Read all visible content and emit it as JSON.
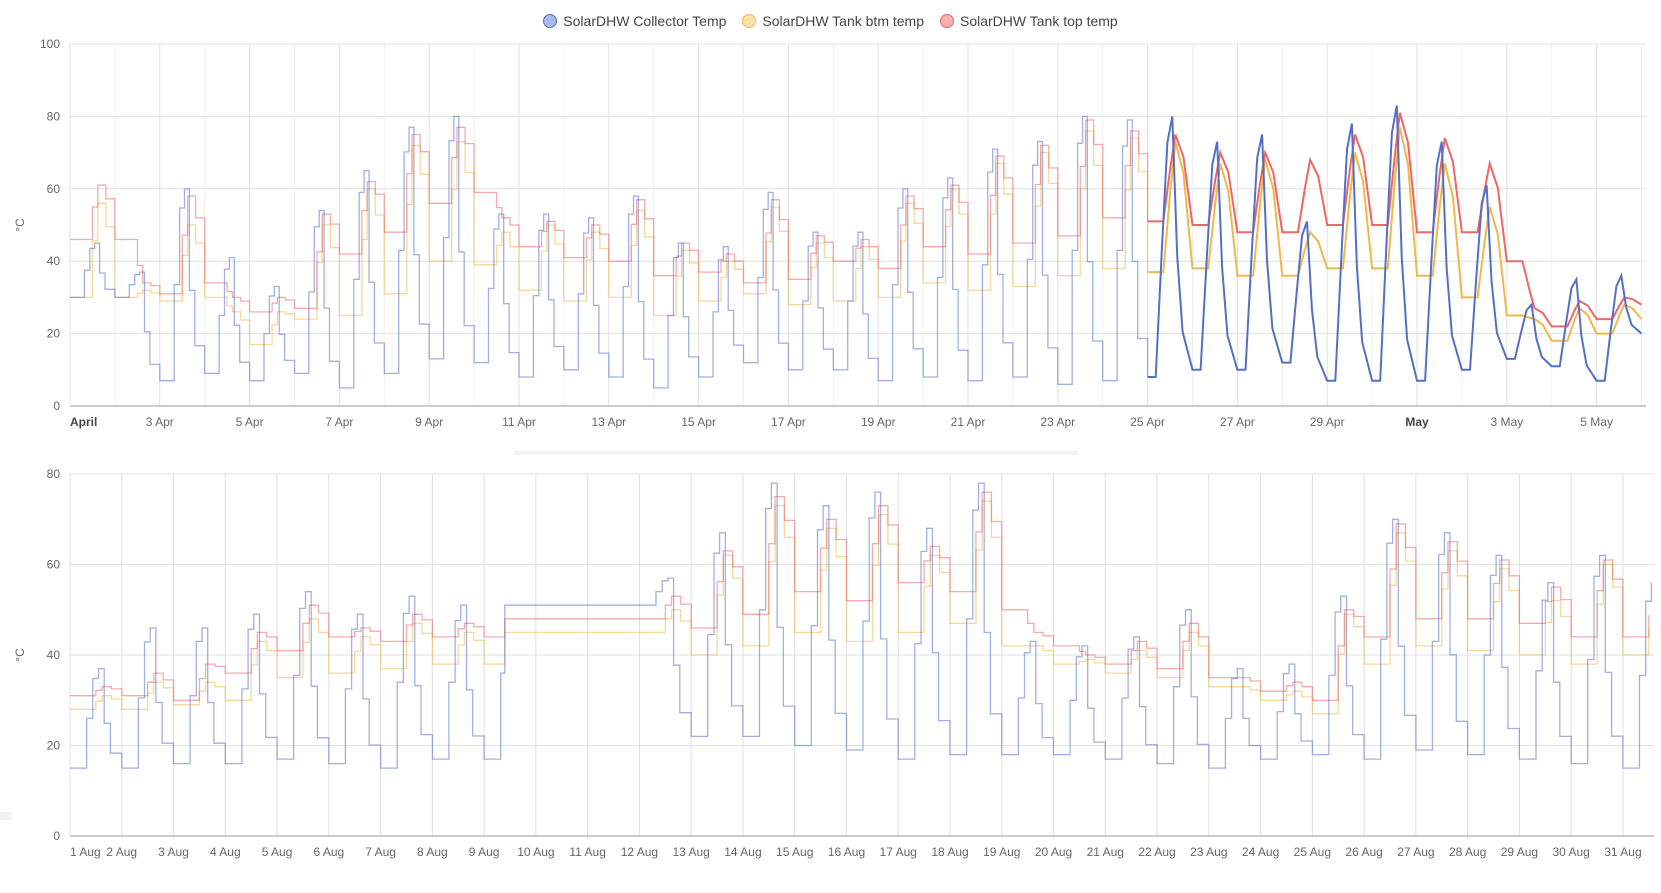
{
  "legend": {
    "items": [
      {
        "label": "SolarDHW Collector Temp",
        "color": "#5470c6",
        "fill": "#aab8e6"
      },
      {
        "label": "SolarDHW Tank btm temp",
        "color": "#f0b84a",
        "fill": "#fbe2ab"
      },
      {
        "label": "SolarDHW Tank top temp",
        "color": "#ee6666",
        "fill": "#f6b0b0"
      }
    ]
  },
  "colors": {
    "collector": "#5470c6",
    "tank_bottom": "#f0b84a",
    "tank_top": "#ee6666",
    "grid": "#e0e0e0",
    "axis_text": "#666666"
  },
  "chart_data": [
    {
      "type": "line",
      "ylabel": "°C",
      "ylim": [
        0,
        100
      ],
      "yticks": [
        0,
        20,
        40,
        60,
        80,
        100
      ],
      "x_unit": "days since 1 April",
      "xlim": [
        0,
        35.1
      ],
      "xticks": [
        {
          "x": 0,
          "label": "April",
          "bold": true
        },
        {
          "x": 2,
          "label": "3 Apr"
        },
        {
          "x": 4,
          "label": "5 Apr"
        },
        {
          "x": 6,
          "label": "7 Apr"
        },
        {
          "x": 8,
          "label": "9 Apr"
        },
        {
          "x": 10,
          "label": "11 Apr"
        },
        {
          "x": 12,
          "label": "13 Apr"
        },
        {
          "x": 14,
          "label": "15 Apr"
        },
        {
          "x": 16,
          "label": "17 Apr"
        },
        {
          "x": 18,
          "label": "19 Apr"
        },
        {
          "x": 20,
          "label": "21 Apr"
        },
        {
          "x": 22,
          "label": "23 Apr"
        },
        {
          "x": 24,
          "label": "25 Apr"
        },
        {
          "x": 26,
          "label": "27 Apr"
        },
        {
          "x": 28,
          "label": "29 Apr"
        },
        {
          "x": 30,
          "label": "May",
          "bold": true
        },
        {
          "x": 32,
          "label": "3 May"
        },
        {
          "x": 34,
          "label": "5 May"
        }
      ],
      "bold_data_from": 24.0,
      "series": [
        {
          "name": "SolarDHW Collector Temp",
          "key": "collector",
          "peaks": [
            45,
            37,
            60,
            41,
            33,
            54,
            65,
            77,
            80,
            53,
            53,
            52,
            58,
            45,
            44,
            59,
            48,
            48,
            60,
            63,
            71,
            73,
            80,
            79,
            80,
            73,
            75,
            51,
            78,
            83,
            73,
            61,
            28,
            35,
            36
          ],
          "troughs": [
            30,
            7,
            9,
            7,
            9,
            5,
            9,
            13,
            12,
            8,
            10,
            8,
            5,
            8,
            12,
            10,
            10,
            7,
            8,
            7,
            8,
            6,
            7,
            8,
            10,
            10,
            12,
            7,
            7,
            7,
            10,
            13,
            11,
            7,
            20
          ]
        },
        {
          "name": "SolarDHW Tank btm temp",
          "key": "tank_bottom",
          "peaks": [
            56,
            32,
            50,
            26,
            26,
            50,
            60,
            72,
            73,
            48,
            50,
            48,
            54,
            43,
            40,
            55,
            45,
            44,
            56,
            60,
            67,
            70,
            76,
            74,
            73,
            67,
            68,
            48,
            70,
            77,
            67,
            55,
            24,
            27,
            28
          ],
          "troughs": [
            30,
            29,
            30,
            17,
            24,
            25,
            31,
            40,
            39,
            32,
            29,
            30,
            25,
            29,
            31,
            28,
            29,
            30,
            34,
            32,
            33,
            36,
            38,
            37,
            38,
            36,
            36,
            38,
            38,
            36,
            30,
            25,
            18,
            20,
            24
          ]
        },
        {
          "name": "SolarDHW Tank top temp",
          "key": "tank_top",
          "peaks": [
            61,
            34,
            58,
            30,
            30,
            53,
            62,
            75,
            77,
            52,
            51,
            50,
            57,
            45,
            42,
            57,
            47,
            46,
            58,
            61,
            69,
            72,
            79,
            76,
            75,
            70,
            70,
            68,
            75,
            81,
            74,
            67,
            27,
            29,
            30
          ],
          "troughs": [
            46,
            31,
            34,
            26,
            27,
            42,
            48,
            56,
            59,
            44,
            41,
            40,
            36,
            37,
            34,
            35,
            40,
            38,
            44,
            42,
            45,
            47,
            52,
            51,
            50,
            48,
            48,
            50,
            50,
            48,
            48,
            40,
            22,
            24,
            28
          ]
        }
      ]
    },
    {
      "type": "line",
      "ylabel": "°C",
      "ylim": [
        0,
        80
      ],
      "yticks": [
        0,
        20,
        40,
        60,
        80
      ],
      "x_unit": "days since 1 August",
      "xlim": [
        0,
        30.6
      ],
      "xticks": [
        {
          "x": 0,
          "label": "1 Aug"
        },
        {
          "x": 1,
          "label": "2 Aug"
        },
        {
          "x": 2,
          "label": "3 Aug"
        },
        {
          "x": 3,
          "label": "4 Aug"
        },
        {
          "x": 4,
          "label": "5 Aug"
        },
        {
          "x": 5,
          "label": "6 Aug"
        },
        {
          "x": 6,
          "label": "7 Aug"
        },
        {
          "x": 7,
          "label": "8 Aug"
        },
        {
          "x": 8,
          "label": "9 Aug"
        },
        {
          "x": 9,
          "label": "10 Aug"
        },
        {
          "x": 10,
          "label": "11 Aug"
        },
        {
          "x": 11,
          "label": "12 Aug"
        },
        {
          "x": 12,
          "label": "13 Aug"
        },
        {
          "x": 13,
          "label": "14 Aug"
        },
        {
          "x": 14,
          "label": "15 Aug"
        },
        {
          "x": 15,
          "label": "16 Aug"
        },
        {
          "x": 16,
          "label": "17 Aug"
        },
        {
          "x": 17,
          "label": "18 Aug"
        },
        {
          "x": 18,
          "label": "19 Aug"
        },
        {
          "x": 19,
          "label": "20 Aug"
        },
        {
          "x": 20,
          "label": "21 Aug"
        },
        {
          "x": 21,
          "label": "22 Aug"
        },
        {
          "x": 22,
          "label": "23 Aug"
        },
        {
          "x": 23,
          "label": "24 Aug"
        },
        {
          "x": 24,
          "label": "25 Aug"
        },
        {
          "x": 25,
          "label": "26 Aug"
        },
        {
          "x": 26,
          "label": "27 Aug"
        },
        {
          "x": 27,
          "label": "28 Aug"
        },
        {
          "x": 28,
          "label": "29 Aug"
        },
        {
          "x": 29,
          "label": "30 Aug"
        },
        {
          "x": 30,
          "label": "31 Aug"
        }
      ],
      "flat_gap": {
        "from": 8.4,
        "to": 10.8,
        "collector": 51,
        "tank_bottom": 45,
        "tank_top": 48
      },
      "series": [
        {
          "name": "SolarDHW Collector Temp",
          "key": "collector",
          "peaks": [
            37,
            46,
            46,
            49,
            54,
            49,
            53,
            51,
            55,
            51,
            51,
            57,
            67,
            78,
            73,
            76,
            68,
            78,
            43,
            42,
            44,
            50,
            37,
            38,
            53,
            70,
            67,
            62,
            56,
            62,
            56
          ],
          "troughs": [
            15,
            16,
            16,
            17,
            16,
            15,
            17,
            17,
            16,
            51,
            51,
            22,
            22,
            20,
            19,
            17,
            18,
            18,
            18,
            17,
            16,
            15,
            17,
            18,
            17,
            19,
            18,
            17,
            16,
            15,
            14
          ]
        },
        {
          "name": "SolarDHW Tank btm temp",
          "key": "tank_bottom",
          "peaks": [
            31,
            34,
            34,
            43,
            48,
            44,
            47,
            45,
            48,
            45,
            45,
            50,
            62,
            73,
            68,
            71,
            62,
            74,
            42,
            39,
            41,
            45,
            33,
            32,
            49,
            67,
            63,
            59,
            52,
            60,
            50
          ],
          "troughs": [
            28,
            29,
            30,
            35,
            36,
            37,
            38,
            38,
            40,
            45,
            45,
            40,
            42,
            45,
            43,
            45,
            47,
            42,
            38,
            36,
            35,
            33,
            30,
            27,
            38,
            42,
            41,
            40,
            38,
            40,
            37
          ]
        },
        {
          "name": "SolarDHW Tank top temp",
          "key": "tank_top",
          "peaks": [
            33,
            36,
            38,
            45,
            51,
            46,
            49,
            47,
            51,
            48,
            48,
            53,
            63,
            75,
            70,
            73,
            64,
            76,
            45,
            40,
            43,
            47,
            35,
            34,
            50,
            69,
            65,
            61,
            55,
            61,
            52
          ],
          "troughs": [
            31,
            30,
            36,
            41,
            44,
            43,
            44,
            44,
            45,
            48,
            48,
            46,
            49,
            54,
            52,
            56,
            54,
            50,
            42,
            38,
            37,
            35,
            32,
            30,
            44,
            48,
            48,
            47,
            44,
            44,
            42
          ]
        }
      ]
    }
  ]
}
